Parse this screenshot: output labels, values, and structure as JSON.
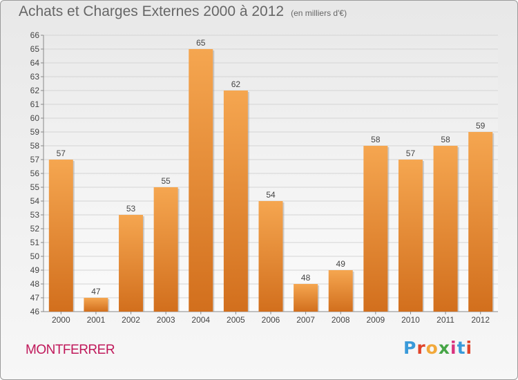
{
  "header": {
    "title": "Achats et Charges Externes 2000 à 2012",
    "unit": "(en milliers d'€)"
  },
  "footer": {
    "town": "MONTFERRER",
    "logo": "Proxiti"
  },
  "colors": {
    "bar_top": "#f5a650",
    "bar_bottom": "#d26f1d",
    "town": "#c0185a"
  },
  "chart_data": {
    "type": "bar",
    "categories": [
      "2000",
      "2001",
      "2002",
      "2003",
      "2004",
      "2005",
      "2006",
      "2007",
      "2008",
      "2009",
      "2010",
      "2011",
      "2012"
    ],
    "values": [
      57,
      47,
      53,
      55,
      65,
      62,
      54,
      48,
      49,
      58,
      57,
      58,
      59
    ],
    "title": "Achats et Charges Externes 2000 à 2012",
    "subtitle": "(en milliers d'€)",
    "ylim": [
      46,
      66
    ],
    "yticks": [
      46,
      47,
      48,
      49,
      50,
      51,
      52,
      53,
      54,
      55,
      56,
      57,
      58,
      59,
      60,
      61,
      62,
      63,
      64,
      65,
      66
    ],
    "grid": "horizontal",
    "data_labels": true
  }
}
